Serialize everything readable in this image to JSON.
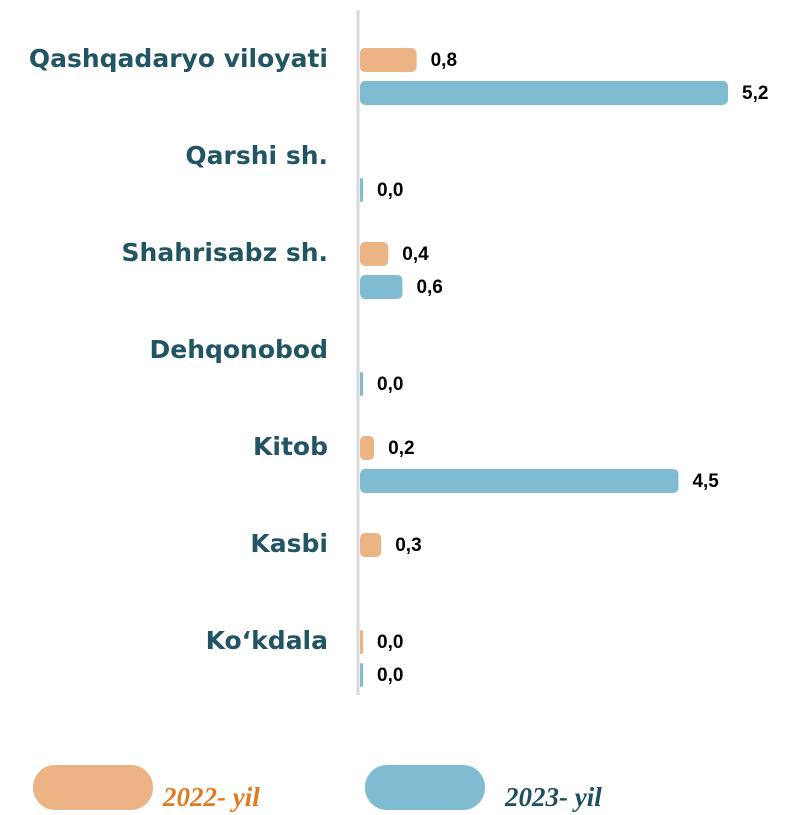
{
  "chart_data": {
    "type": "bar",
    "orientation": "horizontal",
    "categories": [
      "Qashqadaryo viloyati",
      "Qarshi sh.",
      "Shahrisabz sh.",
      "Dehqonobod",
      "Kitob",
      "Kasbi",
      "Ko‘kdala"
    ],
    "series": [
      {
        "name": "2022- yil",
        "color": "#ecb484",
        "text_color": "#e07a1f",
        "values": [
          0.8,
          null,
          0.4,
          null,
          0.2,
          0.3,
          0.0
        ],
        "value_labels": [
          "0,8",
          null,
          "0,4",
          null,
          "0,2",
          "0,3",
          "0,0"
        ]
      },
      {
        "name": "2023- yil",
        "color": "#7fbcd2",
        "text_color": "#1f4e5f",
        "values": [
          5.2,
          0.0,
          0.6,
          0.0,
          4.5,
          null,
          0.0
        ],
        "value_labels": [
          "5,2",
          "0,0",
          "0,6",
          "0,0",
          "4,5",
          null,
          "0,0"
        ]
      }
    ]
  }
}
